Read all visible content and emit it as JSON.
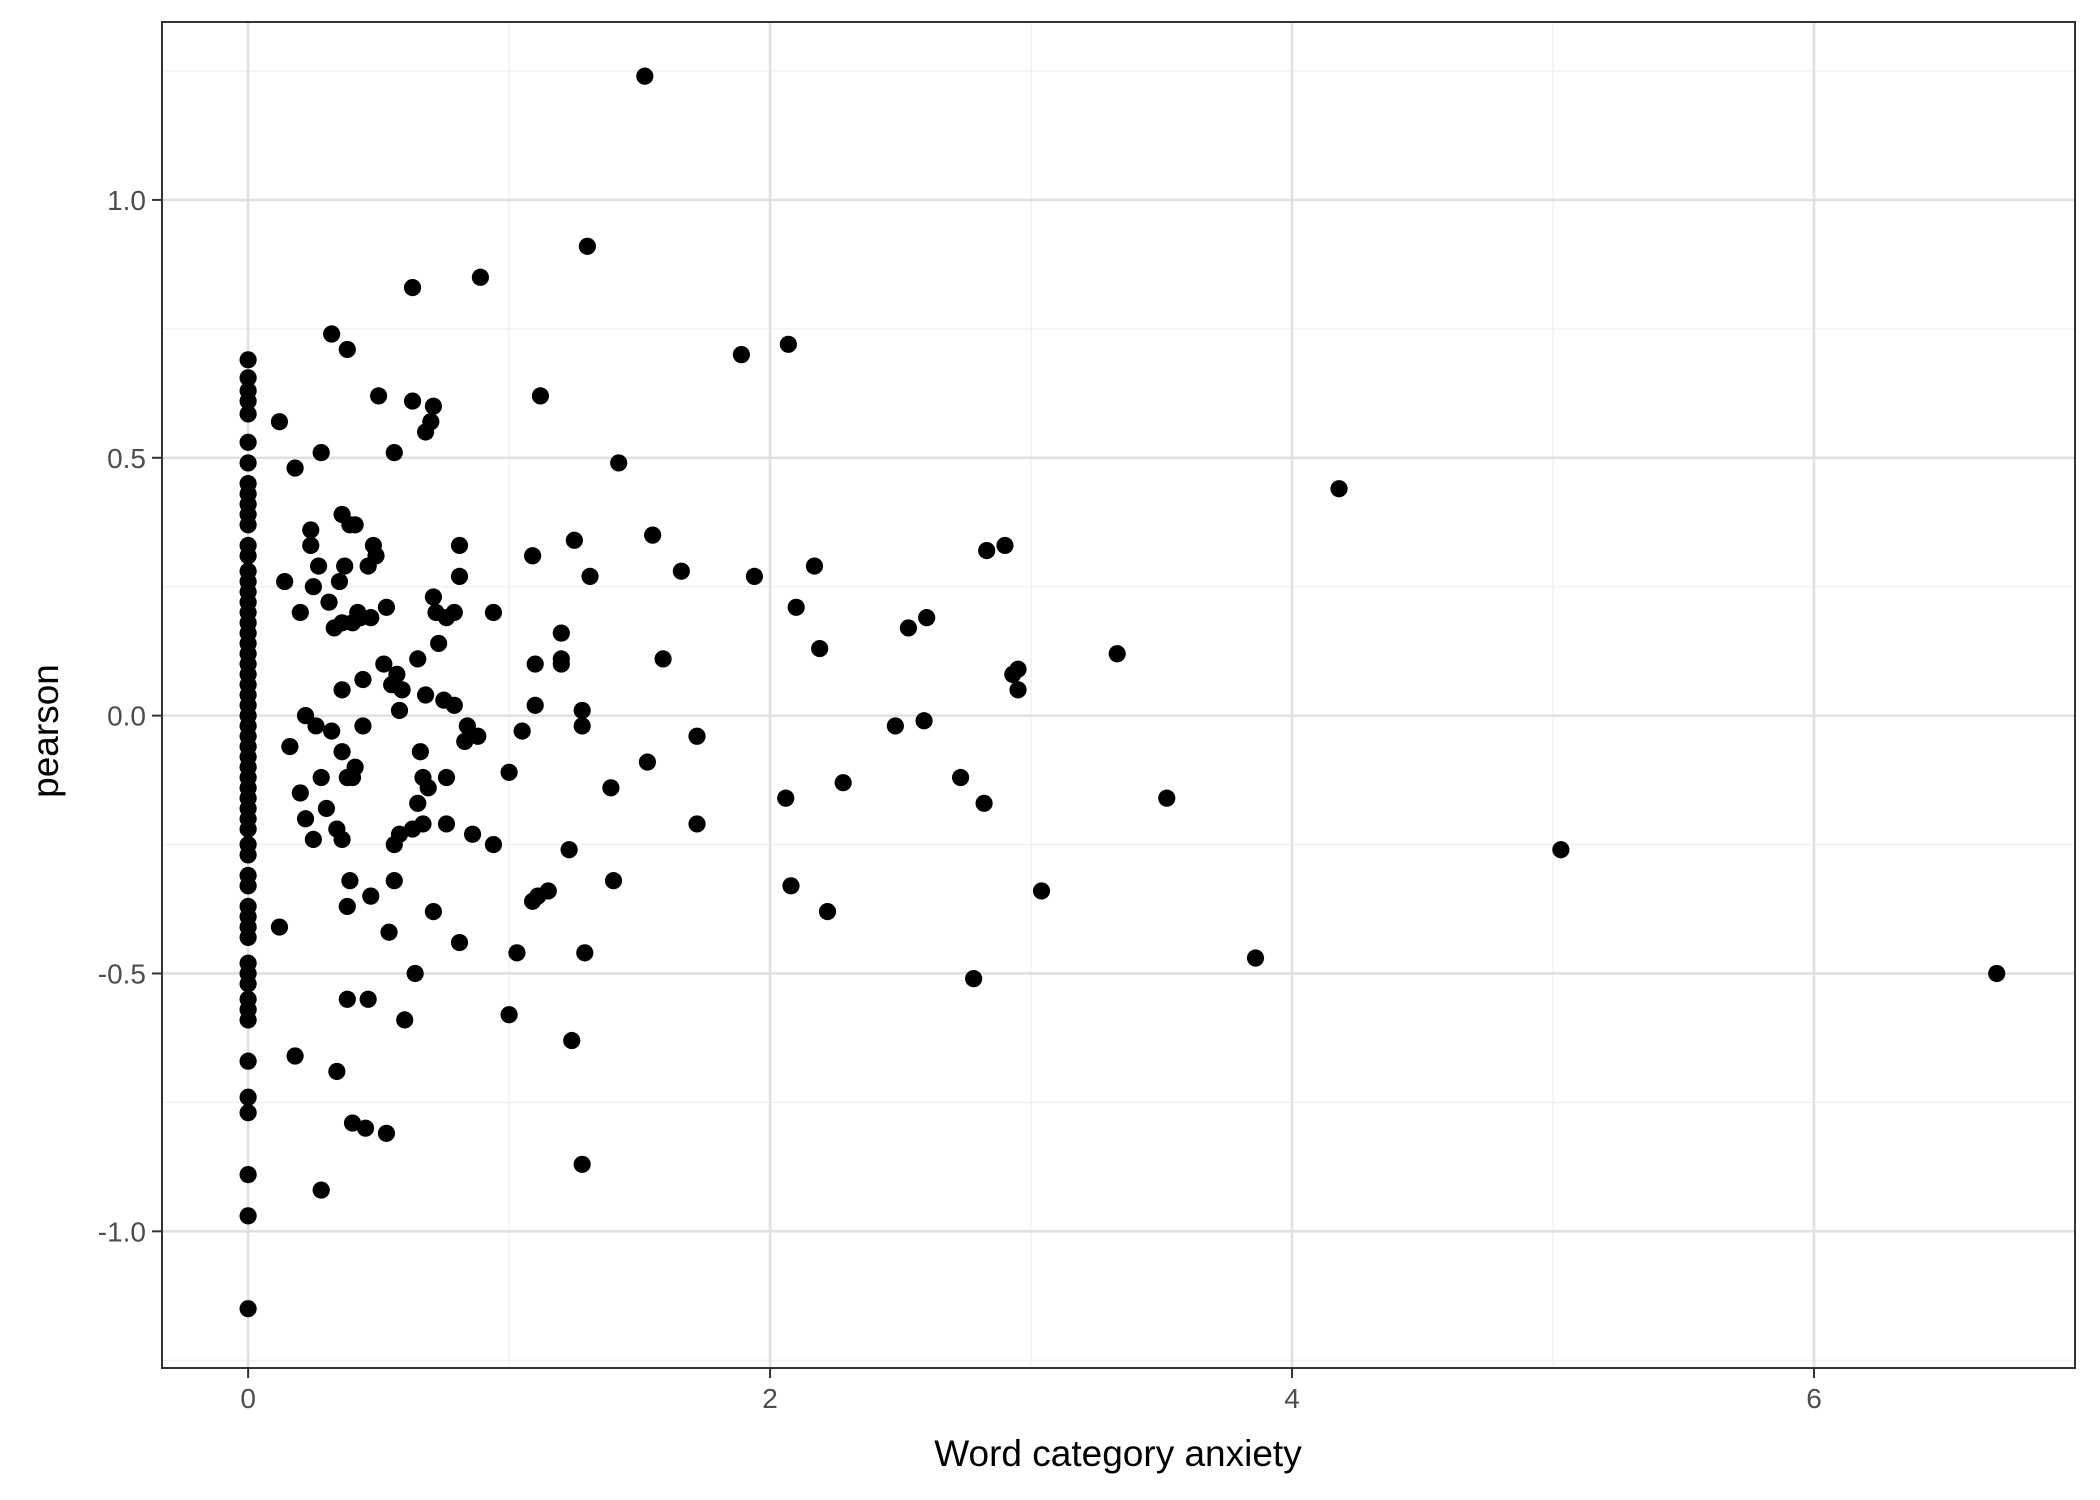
{
  "chart_data": {
    "type": "scatter",
    "title": "",
    "xlabel": "Word category anxiety",
    "ylabel": "pearson",
    "xlim": [
      -0.33,
      7.0
    ],
    "ylim": [
      -1.265,
      1.345
    ],
    "x_ticks": [
      0,
      2,
      4,
      6
    ],
    "x_tick_labels": [
      "0",
      "2",
      "4",
      "6"
    ],
    "y_ticks": [
      -1.0,
      -0.5,
      0.0,
      0.5,
      1.0
    ],
    "y_tick_labels": [
      "-1.0",
      "-0.5",
      "0.0",
      "0.5",
      "1.0"
    ],
    "grid": true,
    "legend": "none",
    "colors": {
      "point": "#000000",
      "grid_major": "#e0e0e0",
      "grid_minor": "#f0f0f0",
      "panel_border": "#333333"
    },
    "points": [
      {
        "x": 0,
        "y": 0.69
      },
      {
        "x": 0,
        "y": 0.655
      },
      {
        "x": 0,
        "y": 0.63
      },
      {
        "x": 0,
        "y": 0.61
      },
      {
        "x": 0,
        "y": 0.585
      },
      {
        "x": 0,
        "y": 0.53
      },
      {
        "x": 0,
        "y": 0.49
      },
      {
        "x": 0,
        "y": 0.45
      },
      {
        "x": 0,
        "y": 0.43
      },
      {
        "x": 0,
        "y": 0.41
      },
      {
        "x": 0,
        "y": 0.39
      },
      {
        "x": 0,
        "y": 0.37
      },
      {
        "x": 0,
        "y": 0.33
      },
      {
        "x": 0,
        "y": 0.31
      },
      {
        "x": 0,
        "y": 0.28
      },
      {
        "x": 0,
        "y": 0.26
      },
      {
        "x": 0,
        "y": 0.24
      },
      {
        "x": 0,
        "y": 0.22
      },
      {
        "x": 0,
        "y": 0.2
      },
      {
        "x": 0,
        "y": 0.18
      },
      {
        "x": 0,
        "y": 0.16
      },
      {
        "x": 0,
        "y": 0.14
      },
      {
        "x": 0,
        "y": 0.12
      },
      {
        "x": 0,
        "y": 0.1
      },
      {
        "x": 0,
        "y": 0.08
      },
      {
        "x": 0,
        "y": 0.06
      },
      {
        "x": 0,
        "y": 0.04
      },
      {
        "x": 0,
        "y": 0.02
      },
      {
        "x": 0,
        "y": 0.0
      },
      {
        "x": 0,
        "y": -0.02
      },
      {
        "x": 0,
        "y": -0.04
      },
      {
        "x": 0,
        "y": -0.06
      },
      {
        "x": 0,
        "y": -0.08
      },
      {
        "x": 0,
        "y": -0.1
      },
      {
        "x": 0,
        "y": -0.12
      },
      {
        "x": 0,
        "y": -0.14
      },
      {
        "x": 0,
        "y": -0.16
      },
      {
        "x": 0,
        "y": -0.18
      },
      {
        "x": 0,
        "y": -0.2
      },
      {
        "x": 0,
        "y": -0.22
      },
      {
        "x": 0,
        "y": -0.25
      },
      {
        "x": 0,
        "y": -0.27
      },
      {
        "x": 0,
        "y": -0.31
      },
      {
        "x": 0,
        "y": -0.33
      },
      {
        "x": 0,
        "y": -0.37
      },
      {
        "x": 0,
        "y": -0.39
      },
      {
        "x": 0,
        "y": -0.41
      },
      {
        "x": 0,
        "y": -0.43
      },
      {
        "x": 0,
        "y": -0.48
      },
      {
        "x": 0,
        "y": -0.5
      },
      {
        "x": 0,
        "y": -0.52
      },
      {
        "x": 0,
        "y": -0.55
      },
      {
        "x": 0,
        "y": -0.57
      },
      {
        "x": 0,
        "y": -0.59
      },
      {
        "x": 0,
        "y": -0.67
      },
      {
        "x": 0,
        "y": -0.74
      },
      {
        "x": 0,
        "y": -0.77
      },
      {
        "x": 0,
        "y": -0.89
      },
      {
        "x": 0,
        "y": -0.97
      },
      {
        "x": 0,
        "y": -1.15
      },
      {
        "x": 0.12,
        "y": 0.57
      },
      {
        "x": 0.12,
        "y": -0.41
      },
      {
        "x": 0.14,
        "y": 0.26
      },
      {
        "x": 0.16,
        "y": -0.06
      },
      {
        "x": 0.18,
        "y": 0.48
      },
      {
        "x": 0.18,
        "y": -0.66
      },
      {
        "x": 0.2,
        "y": 0.2
      },
      {
        "x": 0.2,
        "y": -0.15
      },
      {
        "x": 0.22,
        "y": 0.0
      },
      {
        "x": 0.22,
        "y": -0.2
      },
      {
        "x": 0.24,
        "y": 0.36
      },
      {
        "x": 0.24,
        "y": 0.33
      },
      {
        "x": 0.25,
        "y": 0.25
      },
      {
        "x": 0.25,
        "y": -0.24
      },
      {
        "x": 0.26,
        "y": -0.02
      },
      {
        "x": 0.27,
        "y": 0.29
      },
      {
        "x": 0.28,
        "y": 0.51
      },
      {
        "x": 0.28,
        "y": -0.12
      },
      {
        "x": 0.28,
        "y": -0.92
      },
      {
        "x": 0.3,
        "y": -0.18
      },
      {
        "x": 0.31,
        "y": 0.22
      },
      {
        "x": 0.32,
        "y": 0.74
      },
      {
        "x": 0.32,
        "y": -0.03
      },
      {
        "x": 0.33,
        "y": 0.17
      },
      {
        "x": 0.34,
        "y": -0.22
      },
      {
        "x": 0.34,
        "y": -0.69
      },
      {
        "x": 0.35,
        "y": 0.26
      },
      {
        "x": 0.36,
        "y": 0.39
      },
      {
        "x": 0.36,
        "y": 0.18
      },
      {
        "x": 0.36,
        "y": 0.05
      },
      {
        "x": 0.36,
        "y": -0.07
      },
      {
        "x": 0.36,
        "y": -0.24
      },
      {
        "x": 0.37,
        "y": 0.29
      },
      {
        "x": 0.38,
        "y": 0.71
      },
      {
        "x": 0.38,
        "y": -0.12
      },
      {
        "x": 0.38,
        "y": -0.37
      },
      {
        "x": 0.38,
        "y": -0.55
      },
      {
        "x": 0.39,
        "y": 0.37
      },
      {
        "x": 0.39,
        "y": -0.32
      },
      {
        "x": 0.4,
        "y": 0.18
      },
      {
        "x": 0.4,
        "y": -0.12
      },
      {
        "x": 0.4,
        "y": -0.79
      },
      {
        "x": 0.41,
        "y": 0.37
      },
      {
        "x": 0.41,
        "y": -0.1
      },
      {
        "x": 0.42,
        "y": 0.2
      },
      {
        "x": 0.43,
        "y": 0.19
      },
      {
        "x": 0.44,
        "y": 0.07
      },
      {
        "x": 0.44,
        "y": -0.02
      },
      {
        "x": 0.45,
        "y": -0.8
      },
      {
        "x": 0.46,
        "y": 0.29
      },
      {
        "x": 0.46,
        "y": -0.55
      },
      {
        "x": 0.47,
        "y": 0.19
      },
      {
        "x": 0.47,
        "y": -0.35
      },
      {
        "x": 0.48,
        "y": 0.33
      },
      {
        "x": 0.49,
        "y": 0.31
      },
      {
        "x": 0.5,
        "y": 0.62
      },
      {
        "x": 0.52,
        "y": 0.1
      },
      {
        "x": 0.53,
        "y": 0.21
      },
      {
        "x": 0.53,
        "y": -0.81
      },
      {
        "x": 0.54,
        "y": -0.42
      },
      {
        "x": 0.55,
        "y": 0.06
      },
      {
        "x": 0.56,
        "y": 0.51
      },
      {
        "x": 0.56,
        "y": -0.25
      },
      {
        "x": 0.56,
        "y": -0.32
      },
      {
        "x": 0.57,
        "y": 0.08
      },
      {
        "x": 0.58,
        "y": -0.23
      },
      {
        "x": 0.58,
        "y": 0.01
      },
      {
        "x": 0.59,
        "y": 0.05
      },
      {
        "x": 0.6,
        "y": -0.59
      },
      {
        "x": 0.63,
        "y": 0.83
      },
      {
        "x": 0.63,
        "y": 0.61
      },
      {
        "x": 0.63,
        "y": -0.22
      },
      {
        "x": 0.64,
        "y": -0.5
      },
      {
        "x": 0.65,
        "y": 0.11
      },
      {
        "x": 0.65,
        "y": -0.17
      },
      {
        "x": 0.66,
        "y": -0.07
      },
      {
        "x": 0.67,
        "y": -0.12
      },
      {
        "x": 0.67,
        "y": -0.21
      },
      {
        "x": 0.68,
        "y": 0.55
      },
      {
        "x": 0.68,
        "y": 0.04
      },
      {
        "x": 0.69,
        "y": -0.14
      },
      {
        "x": 0.7,
        "y": 0.57
      },
      {
        "x": 0.71,
        "y": 0.6
      },
      {
        "x": 0.71,
        "y": 0.23
      },
      {
        "x": 0.71,
        "y": -0.38
      },
      {
        "x": 0.72,
        "y": 0.2
      },
      {
        "x": 0.73,
        "y": 0.14
      },
      {
        "x": 0.75,
        "y": 0.03
      },
      {
        "x": 0.76,
        "y": 0.19
      },
      {
        "x": 0.76,
        "y": -0.12
      },
      {
        "x": 0.76,
        "y": -0.21
      },
      {
        "x": 0.79,
        "y": 0.2
      },
      {
        "x": 0.79,
        "y": 0.02
      },
      {
        "x": 0.81,
        "y": 0.33
      },
      {
        "x": 0.81,
        "y": 0.27
      },
      {
        "x": 0.81,
        "y": -0.44
      },
      {
        "x": 0.83,
        "y": -0.05
      },
      {
        "x": 0.84,
        "y": -0.02
      },
      {
        "x": 0.86,
        "y": -0.23
      },
      {
        "x": 0.88,
        "y": -0.04
      },
      {
        "x": 0.89,
        "y": 0.85
      },
      {
        "x": 0.94,
        "y": 0.2
      },
      {
        "x": 0.94,
        "y": -0.25
      },
      {
        "x": 1.0,
        "y": -0.11
      },
      {
        "x": 1.0,
        "y": -0.58
      },
      {
        "x": 1.03,
        "y": -0.46
      },
      {
        "x": 1.05,
        "y": -0.03
      },
      {
        "x": 1.09,
        "y": 0.31
      },
      {
        "x": 1.09,
        "y": -0.36
      },
      {
        "x": 1.1,
        "y": 0.1
      },
      {
        "x": 1.1,
        "y": 0.02
      },
      {
        "x": 1.11,
        "y": -0.35
      },
      {
        "x": 1.12,
        "y": 0.62
      },
      {
        "x": 1.15,
        "y": -0.34
      },
      {
        "x": 1.2,
        "y": 0.16
      },
      {
        "x": 1.2,
        "y": 0.11
      },
      {
        "x": 1.2,
        "y": 0.1
      },
      {
        "x": 1.23,
        "y": -0.26
      },
      {
        "x": 1.24,
        "y": -0.63
      },
      {
        "x": 1.25,
        "y": 0.34
      },
      {
        "x": 1.28,
        "y": 0.01
      },
      {
        "x": 1.28,
        "y": -0.02
      },
      {
        "x": 1.28,
        "y": -0.87
      },
      {
        "x": 1.29,
        "y": -0.46
      },
      {
        "x": 1.3,
        "y": 0.91
      },
      {
        "x": 1.31,
        "y": 0.27
      },
      {
        "x": 1.39,
        "y": -0.14
      },
      {
        "x": 1.4,
        "y": -0.32
      },
      {
        "x": 1.42,
        "y": 0.49
      },
      {
        "x": 1.52,
        "y": 1.24
      },
      {
        "x": 1.53,
        "y": -0.09
      },
      {
        "x": 1.55,
        "y": 0.35
      },
      {
        "x": 1.59,
        "y": 0.11
      },
      {
        "x": 1.66,
        "y": 0.28
      },
      {
        "x": 1.72,
        "y": -0.04
      },
      {
        "x": 1.72,
        "y": -0.21
      },
      {
        "x": 1.89,
        "y": 0.7
      },
      {
        "x": 1.94,
        "y": 0.27
      },
      {
        "x": 2.06,
        "y": -0.16
      },
      {
        "x": 2.07,
        "y": 0.72
      },
      {
        "x": 2.08,
        "y": -0.33
      },
      {
        "x": 2.1,
        "y": 0.21
      },
      {
        "x": 2.17,
        "y": 0.29
      },
      {
        "x": 2.19,
        "y": 0.13
      },
      {
        "x": 2.22,
        "y": -0.38
      },
      {
        "x": 2.28,
        "y": -0.13
      },
      {
        "x": 2.48,
        "y": -0.02
      },
      {
        "x": 2.53,
        "y": 0.17
      },
      {
        "x": 2.59,
        "y": -0.01
      },
      {
        "x": 2.6,
        "y": 0.19
      },
      {
        "x": 2.73,
        "y": -0.12
      },
      {
        "x": 2.78,
        "y": -0.51
      },
      {
        "x": 2.82,
        "y": -0.17
      },
      {
        "x": 2.83,
        "y": 0.32
      },
      {
        "x": 2.9,
        "y": 0.33
      },
      {
        "x": 2.93,
        "y": 0.08
      },
      {
        "x": 2.95,
        "y": 0.09
      },
      {
        "x": 2.95,
        "y": 0.05
      },
      {
        "x": 3.04,
        "y": -0.34
      },
      {
        "x": 3.33,
        "y": 0.12
      },
      {
        "x": 3.52,
        "y": -0.16
      },
      {
        "x": 3.86,
        "y": -0.47
      },
      {
        "x": 4.18,
        "y": 0.44
      },
      {
        "x": 5.03,
        "y": -0.26
      },
      {
        "x": 6.7,
        "y": -0.5
      }
    ]
  }
}
